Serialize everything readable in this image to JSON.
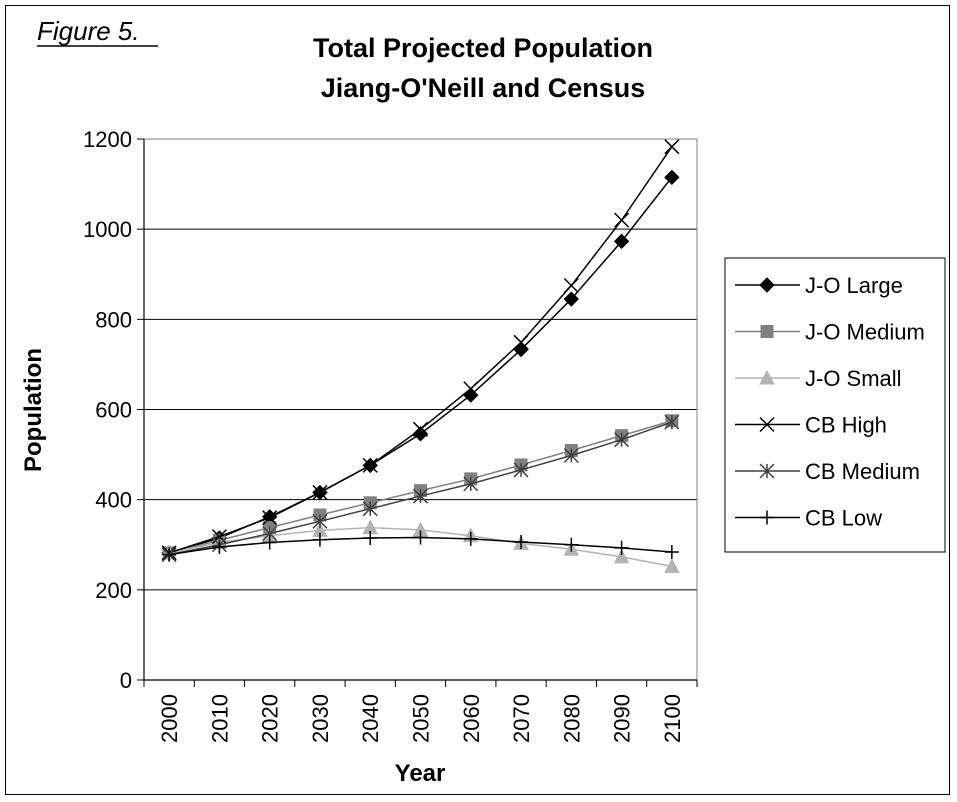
{
  "figure_label": "Figure 5.",
  "chart_data": {
    "type": "line",
    "title": "Total Projected Population",
    "subtitle": "Jiang-O'Neill and Census",
    "xlabel": "Year",
    "ylabel": "Population",
    "x": [
      2000,
      2010,
      2020,
      2030,
      2040,
      2050,
      2060,
      2070,
      2080,
      2090,
      2100
    ],
    "ylim": [
      0,
      1200
    ],
    "yticks": [
      0,
      200,
      400,
      600,
      800,
      1000,
      1200
    ],
    "grid": true,
    "legend_position": "right",
    "series": [
      {
        "name": "J-O Large",
        "marker": "diamond",
        "color": "#000000",
        "values": [
          282,
          315,
          362,
          416,
          476,
          546,
          632,
          733,
          845,
          973,
          1115
        ]
      },
      {
        "name": "J-O Medium",
        "marker": "square",
        "color": "#808080",
        "values": [
          282,
          310,
          338,
          366,
          393,
          420,
          446,
          477,
          509,
          542,
          575
        ]
      },
      {
        "name": "J-O Small",
        "marker": "triangle",
        "color": "#b3b3b3",
        "values": [
          282,
          305,
          320,
          332,
          338,
          333,
          320,
          303,
          290,
          273,
          252
        ]
      },
      {
        "name": "CB High",
        "marker": "x",
        "color": "#000000",
        "values": [
          282,
          318,
          360,
          416,
          476,
          556,
          646,
          749,
          875,
          1020,
          1183
        ]
      },
      {
        "name": "CB Medium",
        "marker": "asterisk",
        "color": "#404040",
        "values": [
          278,
          300,
          325,
          352,
          380,
          408,
          435,
          466,
          498,
          533,
          572
        ]
      },
      {
        "name": "CB Low",
        "marker": "plus",
        "color": "#000000",
        "values": [
          278,
          295,
          305,
          311,
          315,
          316,
          313,
          306,
          300,
          293,
          284
        ]
      }
    ]
  }
}
